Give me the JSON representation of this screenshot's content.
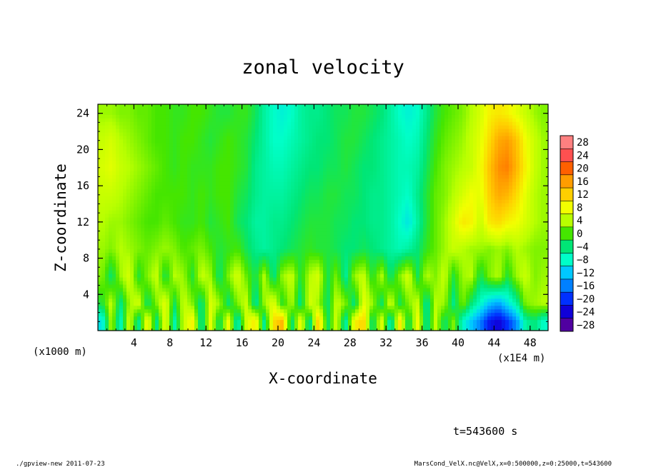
{
  "chart_data": {
    "type": "heatmap",
    "title": "zonal velocity",
    "xlabel": "X-coordinate",
    "ylabel": "Z-coordinate",
    "x_unit_label": "(x1E4 m)",
    "y_unit_label": "(x1000 m)",
    "x_ticks": [
      4,
      8,
      12,
      16,
      20,
      24,
      28,
      32,
      36,
      40,
      44,
      48
    ],
    "y_ticks": [
      4,
      8,
      12,
      16,
      20,
      24
    ],
    "xlim": [
      0,
      50
    ],
    "ylim": [
      0,
      25
    ],
    "colorbar_levels": [
      28,
      24,
      20,
      16,
      12,
      8,
      4,
      0,
      -4,
      -8,
      -12,
      -16,
      -20,
      -24,
      -28
    ],
    "colorbar_colors": [
      "#ff8080",
      "#ff5050",
      "#ff6000",
      "#ff9d00",
      "#ffcf00",
      "#f2ff00",
      "#b8ff00",
      "#45e600",
      "#00e676",
      "#00ffc8",
      "#00c8ff",
      "#0080ff",
      "#0030ff",
      "#1000d8",
      "#5000a0"
    ],
    "timestamp": "t=543600 s",
    "footer_left": "./gpview-new   2011-07-23",
    "footer_right": "MarsCond_VelX.nc@VelX,x=0:500000,z=0:25000,t=543600",
    "field_grid": {
      "x_centers_1e4m": [
        0.5,
        1.5,
        2.5,
        3.5,
        4.5,
        5.5,
        6.5,
        7.5,
        8.5,
        9.5,
        10.5,
        11.5,
        12.5,
        13.5,
        14.5,
        15.5,
        16.5,
        17.5,
        18.5,
        19.5,
        20.5,
        21.5,
        22.5,
        23.5,
        24.5,
        25.5,
        26.5,
        27.5,
        28.5,
        29.5,
        30.5,
        31.5,
        32.5,
        33.5,
        34.5,
        35.5,
        36.5,
        37.5,
        38.5,
        39.5,
        40.5,
        41.5,
        42.5,
        43.5,
        44.5,
        45.5,
        46.5,
        47.5,
        48.5,
        49.5
      ],
      "z_centers_1000m": [
        24,
        21,
        18,
        15,
        12,
        9,
        6,
        3,
        1
      ],
      "values": [
        [
          3,
          3,
          2,
          2,
          1,
          1,
          0,
          0,
          -1,
          -1,
          0,
          0,
          -1,
          -2,
          -2,
          -1,
          -1,
          -3,
          -6,
          -8,
          -9,
          -8,
          -6,
          -5,
          -5,
          -4,
          -3,
          -3,
          -2,
          -2,
          -3,
          -4,
          -6,
          -8,
          -9,
          -8,
          -5,
          -2,
          0,
          1,
          2,
          4,
          6,
          9,
          10,
          9,
          7,
          5,
          3,
          2
        ],
        [
          5,
          6,
          4,
          3,
          2,
          1,
          0,
          0,
          -1,
          0,
          0,
          -1,
          -2,
          -1,
          0,
          -1,
          -2,
          -4,
          -6,
          -8,
          -8,
          -7,
          -6,
          -5,
          -4,
          -4,
          -3,
          -2,
          -2,
          -3,
          -4,
          -5,
          -6,
          -7,
          -8,
          -7,
          -4,
          -1,
          1,
          2,
          3,
          5,
          7,
          11,
          15,
          16,
          13,
          8,
          5,
          3
        ],
        [
          6,
          7,
          5,
          4,
          3,
          2,
          1,
          0,
          -1,
          0,
          -1,
          -1,
          -1,
          0,
          0,
          -1,
          -2,
          -5,
          -6,
          -7,
          -7,
          -6,
          -5,
          -4,
          -4,
          -3,
          -3,
          -2,
          -3,
          -4,
          -4,
          -5,
          -6,
          -7,
          -7,
          -6,
          -3,
          0,
          2,
          3,
          4,
          5,
          8,
          13,
          17,
          18,
          14,
          9,
          5,
          3
        ],
        [
          5,
          5,
          4,
          3,
          2,
          1,
          0,
          0,
          0,
          0,
          -1,
          0,
          -1,
          0,
          0,
          -2,
          -3,
          -5,
          -6,
          -6,
          -6,
          -5,
          -4,
          -3,
          -3,
          -2,
          -2,
          -3,
          -3,
          -4,
          -5,
          -5,
          -6,
          -7,
          -8,
          -5,
          -2,
          1,
          2,
          4,
          6,
          8,
          7,
          12,
          15,
          14,
          11,
          7,
          4,
          3
        ],
        [
          4,
          3,
          3,
          2,
          1,
          0,
          0,
          1,
          0,
          -1,
          -1,
          0,
          -2,
          -1,
          0,
          -3,
          -4,
          -6,
          -6,
          -5,
          -5,
          -4,
          -3,
          -2,
          -2,
          -2,
          -3,
          -3,
          -4,
          -4,
          -5,
          -5,
          -6,
          -8,
          -10,
          -6,
          -2,
          1,
          3,
          6,
          10,
          9,
          5,
          10,
          11,
          9,
          8,
          6,
          4,
          3
        ],
        [
          3,
          2,
          4,
          3,
          2,
          1,
          2,
          3,
          2,
          0,
          1,
          2,
          0,
          -2,
          -1,
          0,
          -3,
          -5,
          -6,
          -5,
          -4,
          -3,
          -2,
          -1,
          -2,
          -2,
          -3,
          -4,
          -4,
          -3,
          -4,
          -5,
          -6,
          -7,
          -6,
          -4,
          -1,
          1,
          3,
          5,
          4,
          3,
          3,
          2,
          3,
          2,
          4,
          3,
          2,
          2
        ],
        [
          2,
          -4,
          3,
          6,
          -2,
          2,
          5,
          -3,
          4,
          3,
          -2,
          5,
          3,
          -4,
          2,
          6,
          1,
          -3,
          4,
          -5,
          3,
          5,
          -2,
          4,
          6,
          -3,
          2,
          -6,
          3,
          5,
          -2,
          4,
          -4,
          2,
          6,
          -3,
          4,
          2,
          5,
          -2,
          3,
          4,
          -3,
          2,
          4,
          -2,
          3,
          5,
          2,
          3
        ],
        [
          -2,
          5,
          -5,
          3,
          6,
          -4,
          2,
          7,
          -3,
          5,
          2,
          -5,
          6,
          3,
          -4,
          2,
          5,
          -6,
          3,
          7,
          -2,
          4,
          -5,
          6,
          3,
          -4,
          5,
          2,
          -5,
          7,
          3,
          -4,
          6,
          -3,
          2,
          5,
          -6,
          4,
          3,
          -5,
          2,
          -4,
          -8,
          -12,
          -14,
          -10,
          -6,
          2,
          3,
          4
        ],
        [
          -10,
          4,
          -8,
          6,
          -6,
          9,
          -5,
          8,
          -7,
          5,
          9,
          -6,
          7,
          -4,
          8,
          -8,
          6,
          10,
          -6,
          11,
          14,
          -5,
          8,
          -6,
          13,
          -4,
          6,
          -7,
          9,
          12,
          -5,
          7,
          -8,
          10,
          -4,
          8,
          -6,
          5,
          -4,
          2,
          -8,
          -12,
          -16,
          -22,
          -24,
          -20,
          -15,
          -6,
          -4,
          -8
        ]
      ]
    }
  }
}
